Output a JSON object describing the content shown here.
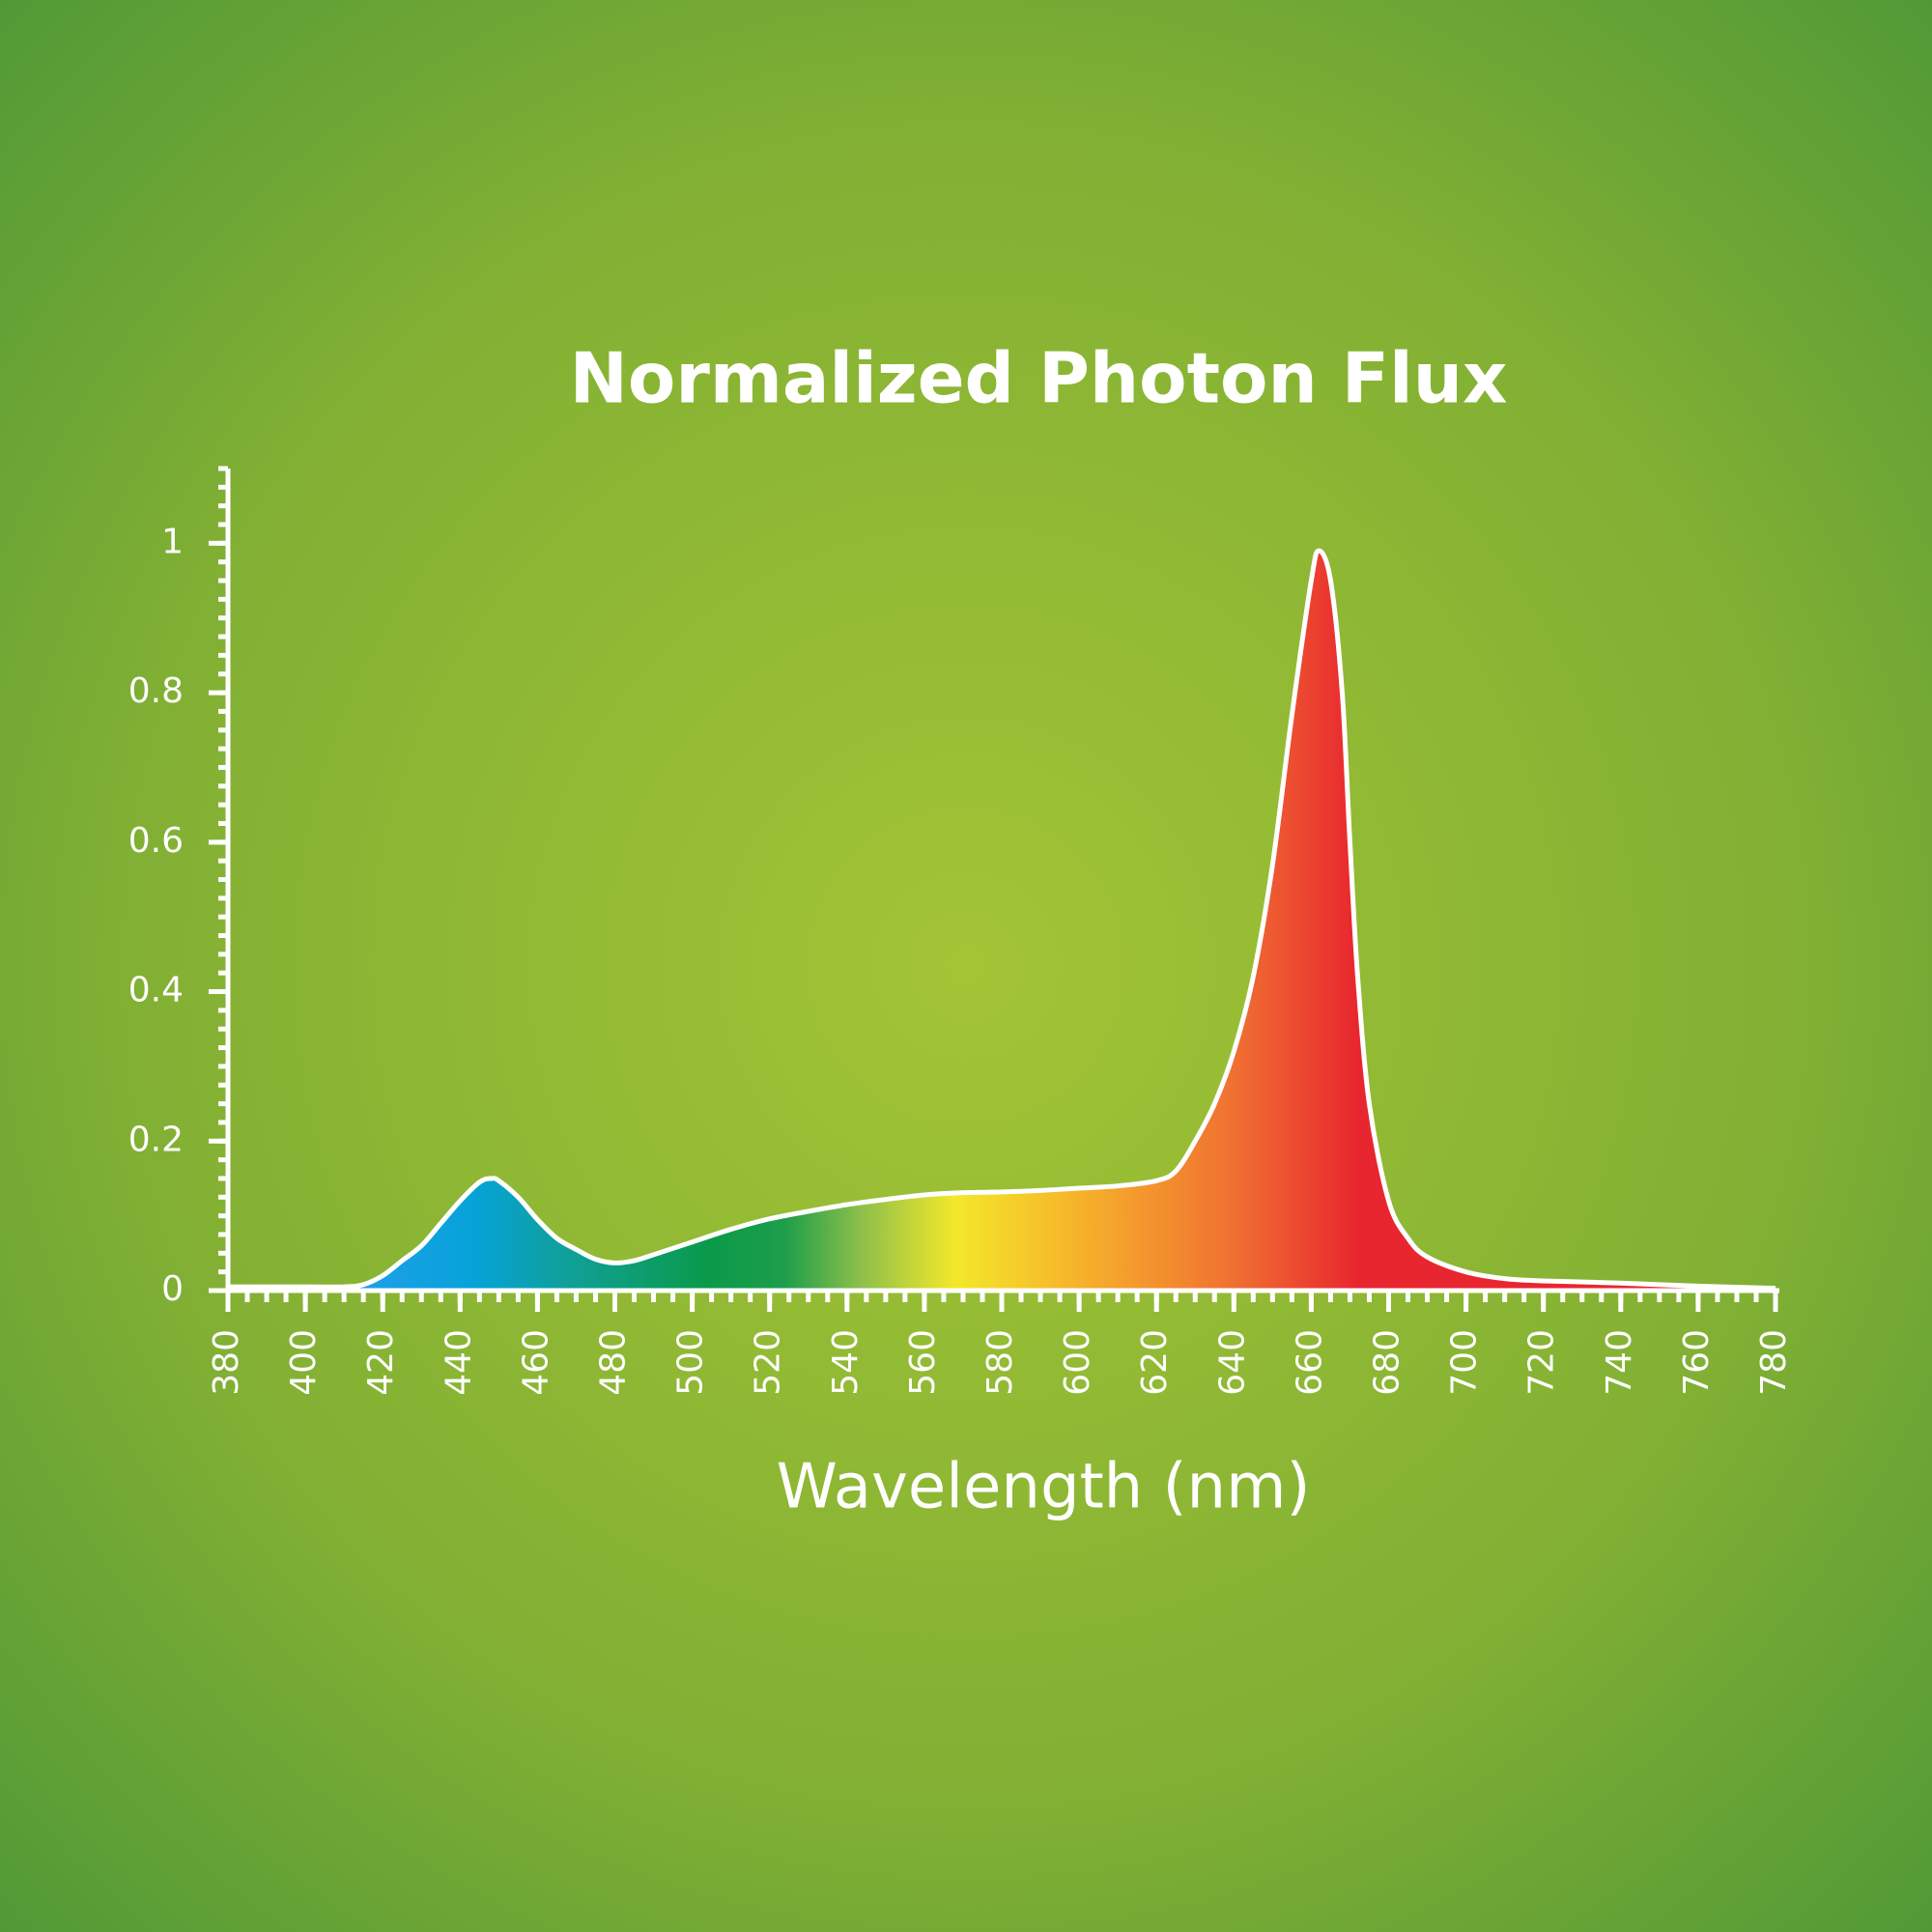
{
  "chart_data": {
    "type": "area",
    "title": "Normalized Photon Flux",
    "x_label": "Wavelength (nm)",
    "x": [
      380,
      390,
      400,
      410,
      415,
      420,
      425,
      430,
      435,
      440,
      445,
      448,
      450,
      455,
      460,
      465,
      470,
      475,
      480,
      485,
      490,
      500,
      510,
      520,
      530,
      540,
      550,
      560,
      570,
      580,
      590,
      600,
      610,
      620,
      625,
      630,
      635,
      640,
      645,
      650,
      655,
      660,
      662,
      665,
      668,
      670,
      672,
      675,
      680,
      685,
      690,
      700,
      710,
      720,
      740,
      760,
      780
    ],
    "values": [
      0.005,
      0.005,
      0.005,
      0.005,
      0.008,
      0.02,
      0.04,
      0.06,
      0.09,
      0.12,
      0.145,
      0.15,
      0.147,
      0.125,
      0.095,
      0.07,
      0.055,
      0.042,
      0.037,
      0.04,
      0.048,
      0.065,
      0.082,
      0.096,
      0.106,
      0.115,
      0.122,
      0.128,
      0.131,
      0.132,
      0.134,
      0.137,
      0.14,
      0.147,
      0.16,
      0.2,
      0.25,
      0.32,
      0.42,
      0.57,
      0.77,
      0.95,
      0.99,
      0.95,
      0.8,
      0.6,
      0.42,
      0.25,
      0.12,
      0.07,
      0.045,
      0.025,
      0.016,
      0.013,
      0.01,
      0.006,
      0.003
    ],
    "line_color": "#ffffff",
    "xlim": [
      380,
      780
    ],
    "xticks": [
      380,
      400,
      420,
      440,
      460,
      480,
      500,
      520,
      540,
      560,
      580,
      600,
      620,
      640,
      660,
      680,
      700,
      720,
      740,
      760,
      780
    ],
    "xminor_step": 5,
    "ylim": [
      0,
      1.1
    ],
    "yticks": [
      0,
      0.2,
      0.4,
      0.6,
      0.8,
      1
    ],
    "yminor_step": 0.025
  }
}
